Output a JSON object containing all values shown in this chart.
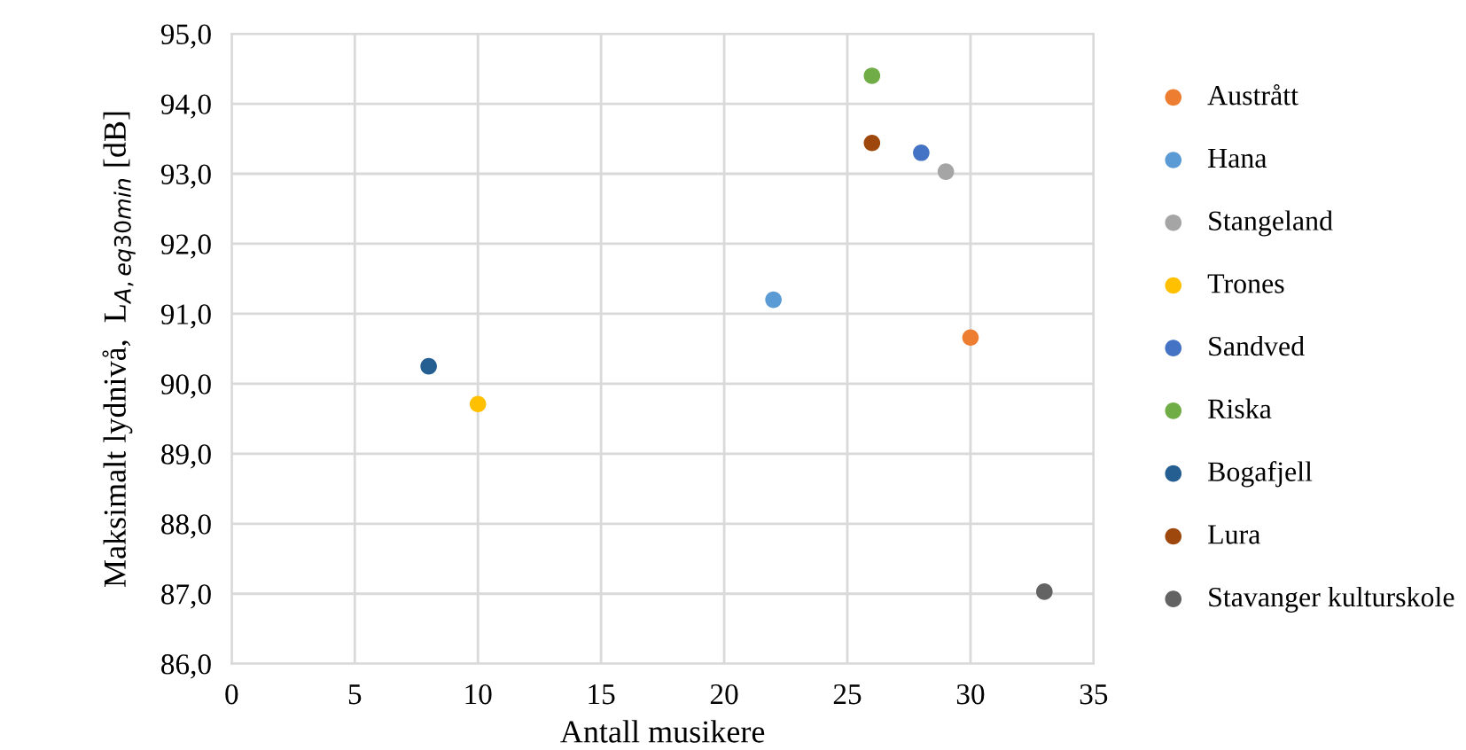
{
  "chart_data": {
    "type": "scatter",
    "xlabel": "Antall musikere",
    "ylabel": "Maksimalt lydnivå,  L$_{A,eq30min}$ [dB]",
    "xlim": [
      0,
      35
    ],
    "xticks": [
      0,
      5,
      10,
      15,
      20,
      25,
      30,
      35
    ],
    "ylim": [
      86,
      95
    ],
    "yticks": [
      {
        "value": 86,
        "label": "86,0"
      },
      {
        "value": 87,
        "label": "87,0"
      },
      {
        "value": 88,
        "label": "88,0"
      },
      {
        "value": 89,
        "label": "89,0"
      },
      {
        "value": 90,
        "label": "90,0"
      },
      {
        "value": 91,
        "label": "91,0"
      },
      {
        "value": 92,
        "label": "92,0"
      },
      {
        "value": 93,
        "label": "93,0"
      },
      {
        "value": 94,
        "label": "94,0"
      },
      {
        "value": 95,
        "label": "95,0"
      }
    ],
    "grid": true,
    "legend": "right",
    "marker": "circle",
    "series": [
      {
        "name": "Austrått",
        "color": "#ed7d31",
        "x": [
          30
        ],
        "values": [
          90.66
        ]
      },
      {
        "name": "Hana",
        "color": "#5b9bd5",
        "x": [
          22
        ],
        "values": [
          91.2
        ]
      },
      {
        "name": "Stangeland",
        "color": "#a5a5a5",
        "x": [
          29
        ],
        "values": [
          93.03
        ]
      },
      {
        "name": "Trones",
        "color": "#ffc000",
        "x": [
          10
        ],
        "values": [
          89.71
        ]
      },
      {
        "name": "Sandved",
        "color": "#4472c4",
        "x": [
          28
        ],
        "values": [
          93.3
        ]
      },
      {
        "name": "Riska",
        "color": "#70ad47",
        "x": [
          26
        ],
        "values": [
          94.4
        ]
      },
      {
        "name": "Bogafjell",
        "color": "#255e91",
        "x": [
          8
        ],
        "values": [
          90.25
        ]
      },
      {
        "name": "Lura",
        "color": "#9e480e",
        "x": [
          26
        ],
        "values": [
          93.44
        ]
      },
      {
        "name": "Stavanger kulturskole",
        "color": "#636363",
        "x": [
          33
        ],
        "values": [
          87.03
        ]
      }
    ]
  }
}
